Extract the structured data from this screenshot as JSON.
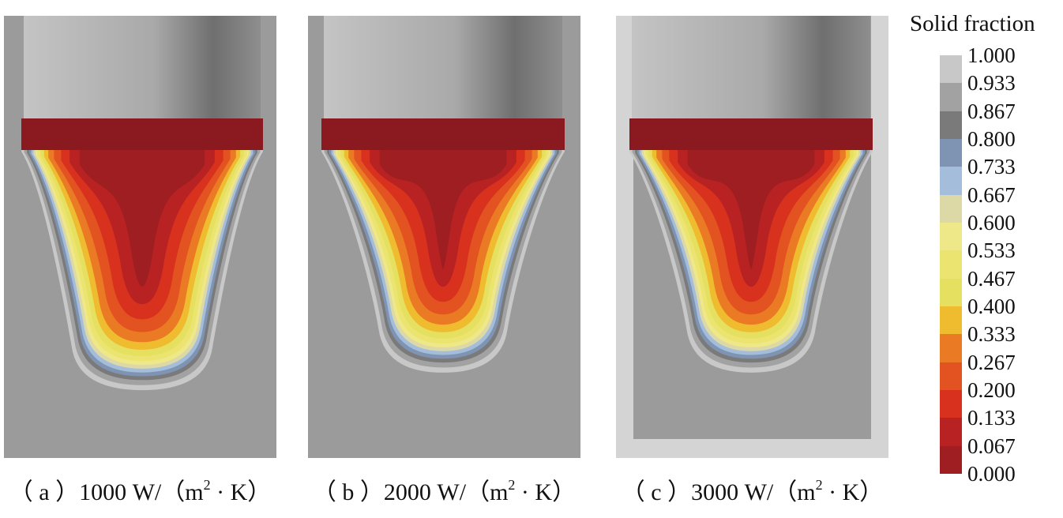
{
  "panels": [
    {
      "caption_prefix": "（ a ）1000 W/（m",
      "exponent": "2",
      "caption_suffix": " · K）",
      "pool_depth": 0.93,
      "pool_halfwidth": 0.47
    },
    {
      "caption_prefix": "（ b ）2000 W/（m",
      "exponent": "2",
      "caption_suffix": " · K）",
      "pool_depth": 0.87,
      "pool_halfwidth": 0.43
    },
    {
      "caption_prefix": "（ c ）3000 W/（m",
      "exponent": "2",
      "caption_suffix": " · K）",
      "pool_depth": 0.87,
      "pool_halfwidth": 0.43
    }
  ],
  "legend": {
    "title": "Solid fraction",
    "ticks": [
      "1.000",
      "0.933",
      "0.867",
      "0.800",
      "0.733",
      "0.667",
      "0.600",
      "0.533",
      "0.467",
      "0.400",
      "0.333",
      "0.267",
      "0.200",
      "0.133",
      "0.067",
      "0.000"
    ],
    "colors": [
      "#c8c8c8",
      "#a2a2a2",
      "#7a7a7a",
      "#7f93b2",
      "#a4bddb",
      "#ddd9a6",
      "#eee889",
      "#ece470",
      "#e6e060",
      "#efbb2f",
      "#ea7a23",
      "#e35321",
      "#d8321e",
      "#b82222",
      "#9f1e22"
    ]
  },
  "colors": {
    "background_gray": "#9b9b9b",
    "cylinder_light": "#c4c4c4",
    "cylinder_dark": "#6f6f6f",
    "pool_top": "#8a1a1f"
  }
}
